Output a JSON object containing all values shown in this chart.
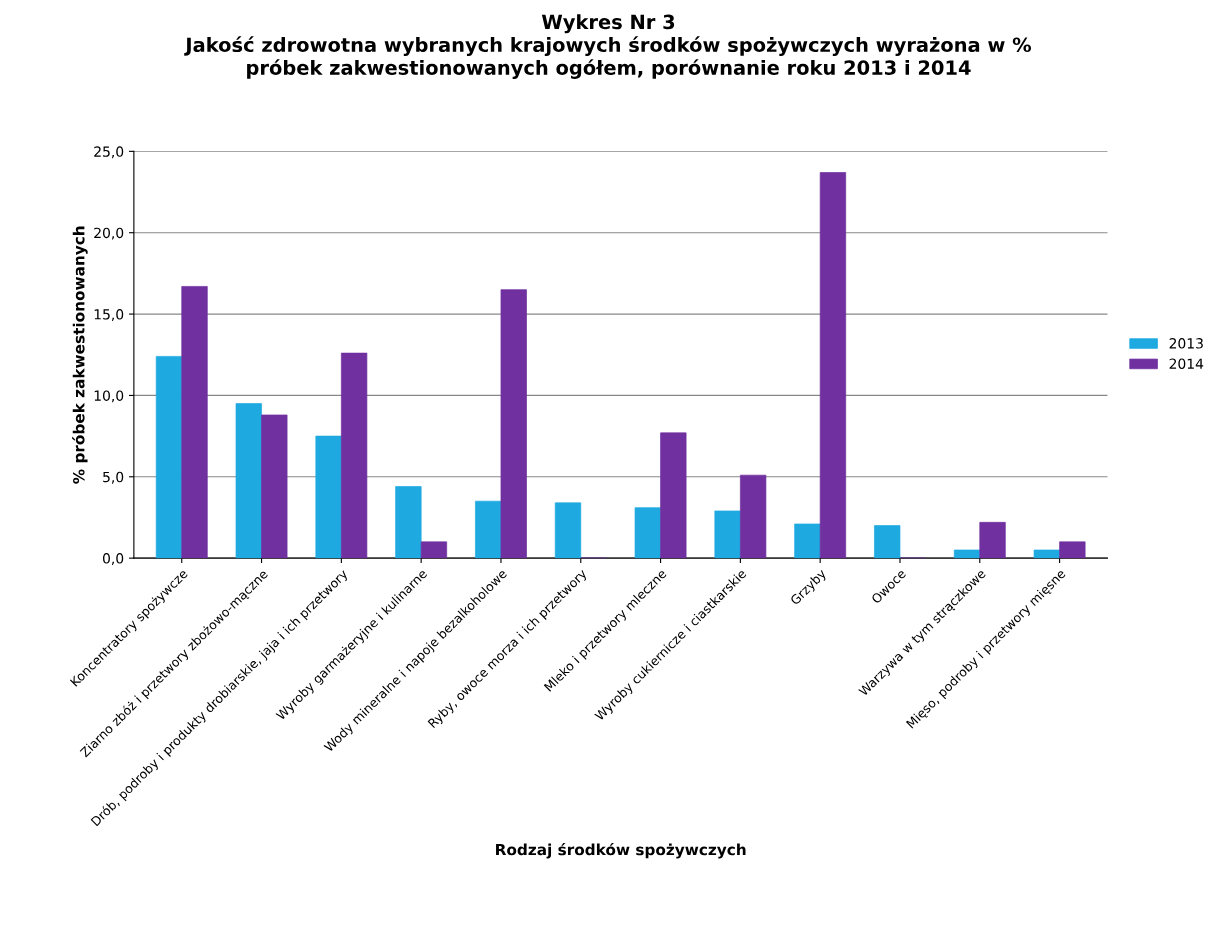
{
  "chart_data": {
    "type": "bar",
    "title": "Wykres Nr 3\nJakość zdrowotna wybranych krajowych środków spożywczych wyrażona w %\npróbek zakwestionowanych ogółem, porównanie roku 2013 i 2014",
    "xlabel": "Rodzaj środków spożywczych",
    "ylabel": "% próbek zakwestionowanych",
    "categories": [
      "Koncentratory spożywcze",
      "Ziarno zbóż i przetwory zbożowo-mączne",
      "Drób, podroby i produkty drobiarskie, jaja i ich przetwory",
      "Wyroby garmażeryjne i kulinarne",
      "Wody mineralne i napoje bezalkoholowe",
      "Ryby, owoce morza i ich przetwory",
      "Mleko i przetwory mleczne",
      "Wyroby cukiernicze i ciastkarskie",
      "Grzyby",
      "Owoce",
      "Warzywa w tym strączkowe",
      "Mięso, podroby i przetwory mięsne"
    ],
    "series": [
      {
        "name": "2013",
        "color": "#1fa9e1",
        "values": [
          12.4,
          9.5,
          7.5,
          4.4,
          3.5,
          3.4,
          3.1,
          2.9,
          2.1,
          2.0,
          0.5,
          0.5
        ]
      },
      {
        "name": "2014",
        "color": "#7030a0",
        "values": [
          16.7,
          8.8,
          12.6,
          1.0,
          16.5,
          0.0,
          7.7,
          5.1,
          23.7,
          0.0,
          2.2,
          1.0
        ]
      }
    ],
    "ylim": [
      0,
      25
    ],
    "yticks": [
      {
        "value": 0,
        "label": "0,0"
      },
      {
        "value": 5,
        "label": "5,0"
      },
      {
        "value": 10,
        "label": "10,0"
      },
      {
        "value": 15,
        "label": "15,0"
      },
      {
        "value": 20,
        "label": "20,0"
      },
      {
        "value": 25,
        "label": "25,0"
      }
    ],
    "grid": "y",
    "legend": "right"
  }
}
